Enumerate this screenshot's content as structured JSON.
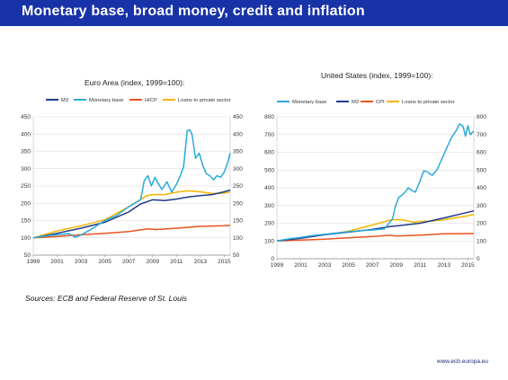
{
  "slide": {
    "title": "Monetary base, broad money, credit and inflation",
    "sources": "Sources: ECB and Federal Reserve of St. Louis",
    "footer": "www.ecb.europa.eu"
  },
  "colors": {
    "title_bar": "#1832a8",
    "m3": "#1f3c88",
    "monetary_base": "#29a9dc",
    "hicp": "#e8541e",
    "loans": "#f5b400"
  },
  "chart_data": [
    {
      "type": "line",
      "title": "Euro Area (index, 1999=100):",
      "xlabel": "",
      "ylabel": "",
      "xlim": [
        1999,
        2015.5
      ],
      "ylim": [
        50,
        450
      ],
      "x_ticks": [
        "1999",
        "2001",
        "2003",
        "2005",
        "2007",
        "2009",
        "2011",
        "2013",
        "2015"
      ],
      "y_ticks": [
        "50",
        "100",
        "150",
        "200",
        "250",
        "300",
        "350",
        "400",
        "450"
      ],
      "grid": true,
      "legend_position": "top",
      "series": [
        {
          "name": "M3",
          "color": "#1f3c88",
          "x": [
            1999,
            2001,
            2003,
            2005,
            2007,
            2008,
            2009,
            2010,
            2011,
            2012,
            2013,
            2014,
            2015,
            2015.5
          ],
          "values": [
            100,
            113,
            128,
            145,
            175,
            198,
            210,
            208,
            212,
            218,
            222,
            225,
            233,
            238
          ]
        },
        {
          "name": "Monetary base",
          "color": "#29a9dc",
          "x": [
            1999,
            2000,
            2001,
            2002,
            2002.5,
            2003,
            2004,
            2005,
            2006,
            2007,
            2008,
            2008.3,
            2008.6,
            2008.9,
            2009.2,
            2009.5,
            2009.8,
            2010.2,
            2010.6,
            2011,
            2011.3,
            2011.6,
            2011.9,
            2012.1,
            2012.3,
            2012.6,
            2012.9,
            2013.2,
            2013.5,
            2013.8,
            2014.1,
            2014.4,
            2014.7,
            2015,
            2015.3,
            2015.5
          ],
          "values": [
            100,
            105,
            109,
            112,
            102,
            108,
            128,
            150,
            165,
            190,
            210,
            265,
            280,
            250,
            275,
            255,
            240,
            262,
            232,
            255,
            278,
            305,
            410,
            412,
            400,
            330,
            345,
            310,
            285,
            280,
            268,
            280,
            275,
            290,
            318,
            345
          ]
        },
        {
          "name": "HICP",
          "color": "#e8541e",
          "x": [
            1999,
            2001,
            2003,
            2005,
            2007,
            2008.6,
            2009.3,
            2011,
            2013,
            2015,
            2015.5
          ],
          "values": [
            100,
            104,
            109,
            113,
            118,
            126,
            124,
            128,
            133,
            135,
            136
          ]
        },
        {
          "name": "Loans to private sector",
          "color": "#f5b400",
          "x": [
            1999,
            2001,
            2003,
            2005,
            2007,
            2008.5,
            2009,
            2010,
            2011,
            2012,
            2013,
            2014,
            2015,
            2015.5
          ],
          "values": [
            100,
            120,
            135,
            152,
            190,
            222,
            225,
            225,
            232,
            236,
            233,
            228,
            230,
            232
          ]
        }
      ]
    },
    {
      "type": "line",
      "title": "United States (index, 1999=100):",
      "xlabel": "",
      "ylabel": "",
      "xlim": [
        1999,
        2015.5
      ],
      "ylim": [
        0,
        800
      ],
      "x_ticks": [
        "1999",
        "2001",
        "2003",
        "2005",
        "2007",
        "2009",
        "2011",
        "2013",
        "2015"
      ],
      "y_ticks": [
        "0",
        "100",
        "200",
        "300",
        "400",
        "500",
        "600",
        "700",
        "800"
      ],
      "grid": true,
      "legend_position": "top",
      "series": [
        {
          "name": "Monetary base",
          "color": "#29a9dc",
          "x": [
            1999,
            2000,
            2001,
            2002,
            2003,
            2004,
            2005,
            2006,
            2007,
            2008,
            2008.7,
            2008.9,
            2009.2,
            2009.5,
            2009.8,
            2010,
            2010.3,
            2010.6,
            2011,
            2011.3,
            2011.6,
            2012,
            2012.4,
            2012.8,
            2013.2,
            2013.6,
            2014,
            2014.3,
            2014.6,
            2014.8,
            2015,
            2015.2,
            2015.5
          ],
          "values": [
            100,
            112,
            120,
            130,
            138,
            145,
            152,
            158,
            162,
            168,
            225,
            290,
            345,
            360,
            380,
            400,
            385,
            375,
            440,
            495,
            490,
            470,
            500,
            560,
            620,
            680,
            720,
            760,
            745,
            690,
            750,
            700,
            720
          ]
        },
        {
          "name": "M2",
          "color": "#1f3c88",
          "x": [
            1999,
            2001,
            2003,
            2005,
            2007,
            2008.5,
            2009,
            2011,
            2013,
            2015,
            2015.5
          ],
          "values": [
            100,
            115,
            135,
            150,
            165,
            182,
            185,
            200,
            230,
            262,
            270
          ]
        },
        {
          "name": "CPI",
          "color": "#e8541e",
          "x": [
            1999,
            2001,
            2003,
            2005,
            2007,
            2008.5,
            2009,
            2011,
            2013,
            2015,
            2015.5
          ],
          "values": [
            100,
            105,
            110,
            118,
            125,
            132,
            128,
            133,
            140,
            142,
            142
          ]
        },
        {
          "name": "Loans to private sector",
          "color": "#f5b400",
          "x": [
            1999,
            2001,
            2003,
            2005,
            2007,
            2008.6,
            2009.5,
            2010.5,
            2011,
            2012,
            2013,
            2014,
            2015,
            2015.5
          ],
          "values": [
            100,
            118,
            135,
            155,
            190,
            220,
            220,
            205,
            210,
            212,
            220,
            232,
            242,
            250
          ]
        }
      ]
    }
  ]
}
